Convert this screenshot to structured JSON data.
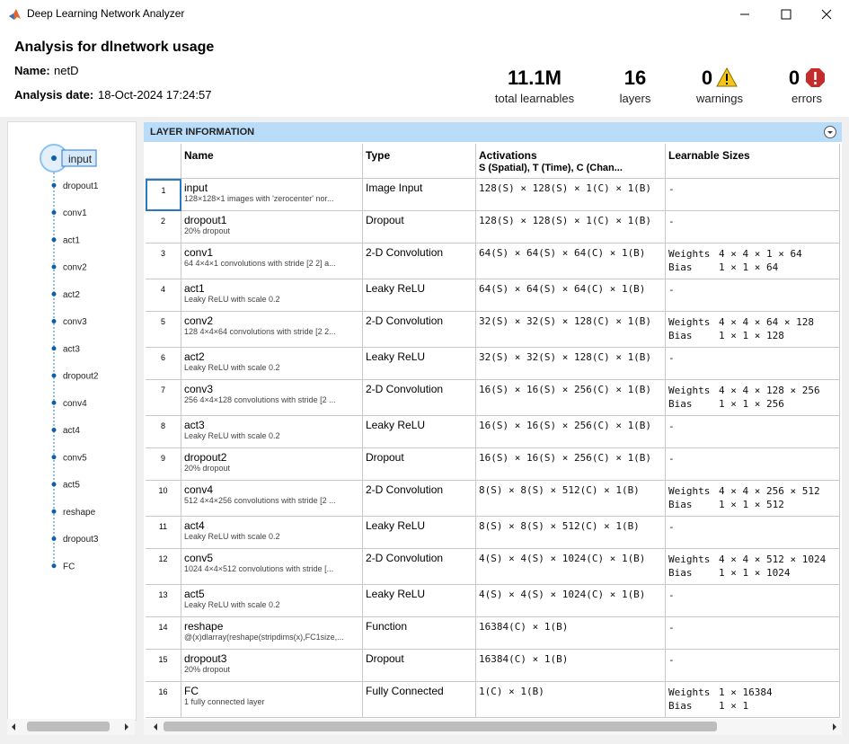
{
  "window": {
    "title": "Deep Learning Network Analyzer"
  },
  "header": {
    "title": "Analysis for dlnetwork usage",
    "name_label": "Name:",
    "name": "netD",
    "date_label": "Analysis date:",
    "date": "18-Oct-2024 17:24:57"
  },
  "summary": [
    {
      "value": "11.1M",
      "label": "total learnables"
    },
    {
      "value": 16,
      "label": "layers"
    },
    {
      "value": 0,
      "label": "warnings"
    },
    {
      "value": 0,
      "label": "errors"
    }
  ],
  "graph": {
    "nodes": [
      "input",
      "dropout1",
      "conv1",
      "act1",
      "conv2",
      "act2",
      "conv3",
      "act3",
      "dropout2",
      "conv4",
      "act4",
      "conv5",
      "act5",
      "reshape",
      "dropout3",
      "FC"
    ]
  },
  "table": {
    "title": "LAYER INFORMATION",
    "columns": {
      "name": "Name",
      "type": "Type",
      "activations": "Activations",
      "activations_sub": "S (Spatial), T (Time), C (Chan...",
      "learnables": "Learnable Sizes"
    },
    "rows": [
      {
        "index": 1,
        "name": "input",
        "description": "128×128×1 images with 'zerocenter' nor...",
        "type": "Image Input",
        "activations": "128(S) × 128(S) × 1(C) × 1(B)",
        "learnables": "-"
      },
      {
        "index": 2,
        "name": "dropout1",
        "description": "20% dropout",
        "type": "Dropout",
        "activations": "128(S) × 128(S) × 1(C) × 1(B)",
        "learnables": "-"
      },
      {
        "index": 3,
        "name": "conv1",
        "description": "64 4×4×1 convolutions with stride [2 2] a...",
        "type": "2-D Convolution",
        "activations": "64(S) × 64(S) × 64(C) × 1(B)",
        "learnables": [
          {
            "label": "Weights",
            "size": "4 × 4 × 1 × 64"
          },
          {
            "label": "Bias",
            "size": "1 × 1 × 64"
          }
        ]
      },
      {
        "index": 4,
        "name": "act1",
        "description": "Leaky ReLU with scale 0.2",
        "type": "Leaky ReLU",
        "activations": "64(S) × 64(S) × 64(C) × 1(B)",
        "learnables": "-"
      },
      {
        "index": 5,
        "name": "conv2",
        "description": "128 4×4×64 convolutions with stride [2 2...",
        "type": "2-D Convolution",
        "activations": "32(S) × 32(S) × 128(C) × 1(B)",
        "learnables": [
          {
            "label": "Weights",
            "size": "4 × 4 × 64 × 128"
          },
          {
            "label": "Bias",
            "size": "1 × 1 × 128"
          }
        ]
      },
      {
        "index": 6,
        "name": "act2",
        "description": "Leaky ReLU with scale 0.2",
        "type": "Leaky ReLU",
        "activations": "32(S) × 32(S) × 128(C) × 1(B)",
        "learnables": "-"
      },
      {
        "index": 7,
        "name": "conv3",
        "description": "256 4×4×128 convolutions with stride [2 ...",
        "type": "2-D Convolution",
        "activations": "16(S) × 16(S) × 256(C) × 1(B)",
        "learnables": [
          {
            "label": "Weights",
            "size": "4 × 4 × 128 × 256"
          },
          {
            "label": "Bias",
            "size": "1 × 1 × 256"
          }
        ]
      },
      {
        "index": 8,
        "name": "act3",
        "description": "Leaky ReLU with scale 0.2",
        "type": "Leaky ReLU",
        "activations": "16(S) × 16(S) × 256(C) × 1(B)",
        "learnables": "-"
      },
      {
        "index": 9,
        "name": "dropout2",
        "description": "20% dropout",
        "type": "Dropout",
        "activations": "16(S) × 16(S) × 256(C) × 1(B)",
        "learnables": "-"
      },
      {
        "index": 10,
        "name": "conv4",
        "description": "512 4×4×256 convolutions with stride [2 ...",
        "type": "2-D Convolution",
        "activations": "8(S) × 8(S) × 512(C) × 1(B)",
        "learnables": [
          {
            "label": "Weights",
            "size": "4 × 4 × 256 × 512"
          },
          {
            "label": "Bias",
            "size": "1 × 1 × 512"
          }
        ]
      },
      {
        "index": 11,
        "name": "act4",
        "description": "Leaky ReLU with scale 0.2",
        "type": "Leaky ReLU",
        "activations": "8(S) × 8(S) × 512(C) × 1(B)",
        "learnables": "-"
      },
      {
        "index": 12,
        "name": "conv5",
        "description": "1024 4×4×512 convolutions with stride [...",
        "type": "2-D Convolution",
        "activations": "4(S) × 4(S) × 1024(C) × 1(B)",
        "learnables": [
          {
            "label": "Weights",
            "size": "4 × 4 × 512 × 1024"
          },
          {
            "label": "Bias",
            "size": "1 × 1 × 1024"
          }
        ]
      },
      {
        "index": 13,
        "name": "act5",
        "description": "Leaky ReLU with scale 0.2",
        "type": "Leaky ReLU",
        "activations": "4(S) × 4(S) × 1024(C) × 1(B)",
        "learnables": "-"
      },
      {
        "index": 14,
        "name": "reshape",
        "description": "@(x)dlarray(reshape(stripdims(x),FC1size,...",
        "type": "Function",
        "activations": "16384(C) × 1(B)",
        "learnables": "-"
      },
      {
        "index": 15,
        "name": "dropout3",
        "description": "20% dropout",
        "type": "Dropout",
        "activations": "16384(C) × 1(B)",
        "learnables": "-"
      },
      {
        "index": 16,
        "name": "FC",
        "description": "1 fully connected layer",
        "type": "Fully Connected",
        "activations": "1(C) × 1(B)",
        "learnables": [
          {
            "label": "Weights",
            "size": "1 × 16384"
          },
          {
            "label": "Bias",
            "size": "1 × 1"
          }
        ]
      }
    ]
  }
}
